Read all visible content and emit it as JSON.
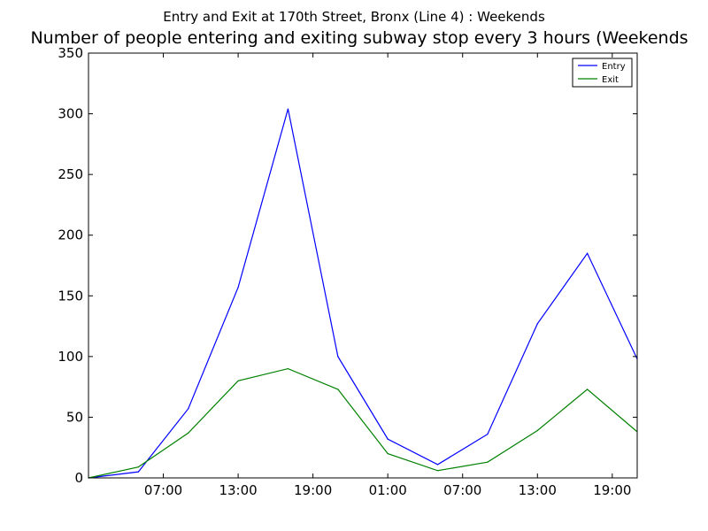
{
  "chart_data": {
    "type": "line",
    "suptitle": "Entry and Exit at 170th Street, Bronx (Line 4) : Weekends",
    "title": "Number of people entering and exiting subway stop every 3 hours (Weekends",
    "xlabel": "",
    "ylabel": "",
    "x_tick_labels": [
      "07:00",
      "13:00",
      "19:00",
      "01:00",
      "07:00",
      "13:00",
      "19:00"
    ],
    "x_tick_hours": [
      7,
      13,
      19,
      25,
      31,
      37,
      43
    ],
    "xlim": [
      1,
      45
    ],
    "x": [
      1,
      5,
      9,
      13,
      17,
      21,
      25,
      29,
      33,
      37,
      41,
      45
    ],
    "ylim": [
      0,
      350
    ],
    "y_ticks": [
      0,
      50,
      100,
      150,
      200,
      250,
      300,
      350
    ],
    "legend_position": "upper-right",
    "grid": false,
    "series": [
      {
        "name": "Entry",
        "color": "#0000ff",
        "values": [
          0,
          5,
          57,
          157,
          304,
          100,
          32,
          11,
          36,
          127,
          185,
          98
        ]
      },
      {
        "name": "Exit",
        "color": "#008000",
        "values": [
          0,
          9,
          37,
          80,
          90,
          73,
          20,
          6,
          13,
          39,
          73,
          38
        ]
      }
    ]
  }
}
